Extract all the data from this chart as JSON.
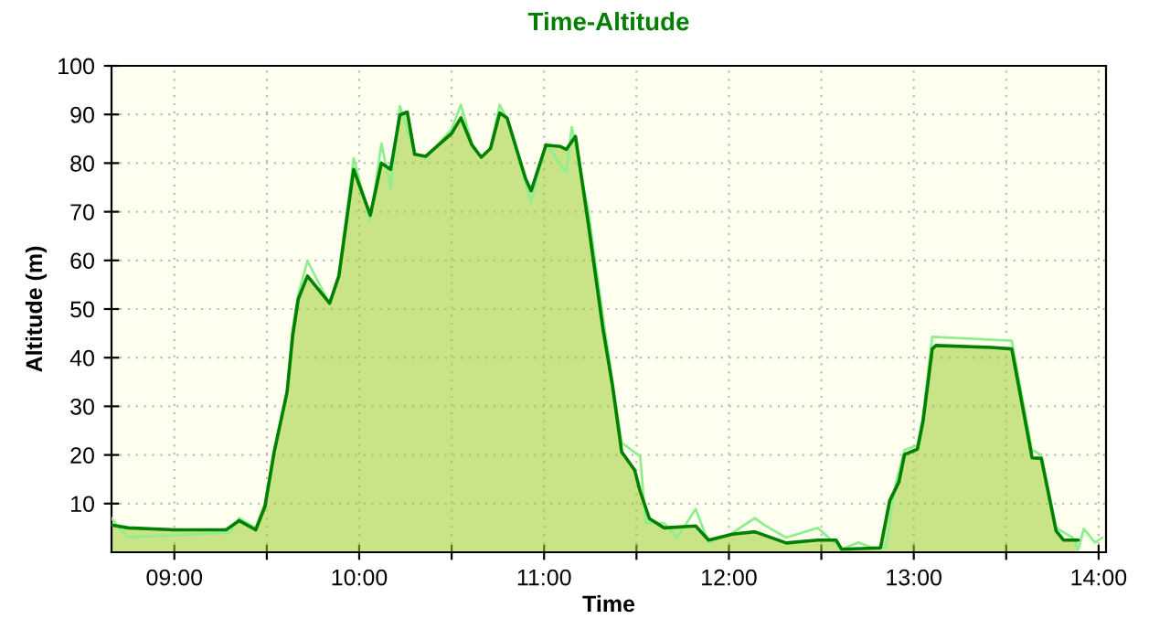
{
  "chart_data": {
    "type": "area",
    "title": "Time-Altitude",
    "xlabel": "Time",
    "ylabel": "Altitude (m)",
    "xlim": [
      8.66,
      14.04
    ],
    "ylim": [
      0,
      100
    ],
    "xticks": [
      {
        "value": 9,
        "label": "09:00"
      },
      {
        "value": 9.5,
        "label": null
      },
      {
        "value": 10,
        "label": "10:00"
      },
      {
        "value": 10.5,
        "label": null
      },
      {
        "value": 11,
        "label": "11:00"
      },
      {
        "value": 11.5,
        "label": null
      },
      {
        "value": 12,
        "label": "12:00"
      },
      {
        "value": 12.5,
        "label": null
      },
      {
        "value": 13,
        "label": "13:00"
      },
      {
        "value": 13.5,
        "label": null
      },
      {
        "value": 14,
        "label": "14:00"
      }
    ],
    "yticks": [
      10,
      20,
      30,
      40,
      50,
      60,
      70,
      80,
      90,
      100
    ],
    "grid": true,
    "series": [
      {
        "type": "line",
        "color": "#90ee90",
        "x": [
          8.66,
          8.7,
          8.75,
          9.3,
          9.35,
          9.44,
          9.49,
          9.54,
          9.61,
          9.64,
          9.67,
          9.72,
          9.84,
          9.89,
          9.97,
          10.06,
          10.12,
          10.17,
          10.22,
          10.3,
          10.36,
          10.5,
          10.55,
          10.61,
          10.66,
          10.71,
          10.76,
          10.8,
          10.93,
          11.01,
          11.12,
          11.15,
          11.24,
          11.32,
          11.37,
          11.42,
          11.52,
          11.55,
          11.65,
          11.72,
          11.82,
          11.89,
          12.02,
          12.14,
          12.2,
          12.31,
          12.48,
          12.61,
          12.7,
          12.78,
          12.85,
          12.9,
          12.95,
          13.02,
          13.05,
          13.1,
          13.53,
          13.61,
          13.64,
          13.69,
          13.77,
          13.86,
          13.89,
          13.92,
          13.98,
          14.02
        ],
        "values": [
          7,
          5,
          3.1,
          4,
          7,
          5,
          10,
          21,
          33,
          46,
          53,
          59.9,
          51,
          57,
          81,
          68,
          84,
          74.9,
          91.7,
          82,
          81,
          87,
          92,
          84,
          81,
          83,
          92,
          89,
          72,
          84,
          78,
          87.4,
          70,
          48,
          35,
          22.5,
          19.7,
          6,
          6,
          3,
          8.9,
          2,
          4,
          7,
          5.4,
          3,
          5,
          0.6,
          2,
          0.9,
          1,
          13.7,
          21,
          22,
          28,
          44.3,
          43.5,
          27,
          21,
          20,
          5,
          3,
          0.5,
          4.8,
          2,
          3
        ]
      },
      {
        "color": "#008000",
        "x": [
          8.66,
          8.75,
          9.0,
          9.28,
          9.35,
          9.44,
          9.49,
          9.54,
          9.61,
          9.64,
          9.67,
          9.72,
          9.84,
          9.89,
          9.97,
          10.06,
          10.12,
          10.17,
          10.22,
          10.26,
          10.3,
          10.36,
          10.5,
          10.55,
          10.61,
          10.66,
          10.71,
          10.76,
          10.8,
          10.9,
          10.93,
          11.01,
          11.09,
          11.12,
          11.17,
          11.24,
          11.32,
          11.37,
          11.42,
          11.49,
          11.52,
          11.57,
          11.65,
          11.82,
          11.89,
          12.02,
          12.14,
          12.31,
          12.48,
          12.58,
          12.61,
          12.82,
          12.87,
          12.92,
          12.95,
          13.02,
          13.05,
          13.1,
          13.12,
          13.42,
          13.53,
          13.61,
          13.64,
          13.69,
          13.77,
          13.81,
          13.89
        ],
        "values": [
          5.6,
          5.0,
          4.6,
          4.6,
          6.5,
          4.6,
          9.4,
          20.6,
          33,
          44.5,
          52,
          56.8,
          51.2,
          56.8,
          78.7,
          69.3,
          80,
          78.7,
          89.9,
          90.5,
          81.8,
          81.4,
          86.1,
          89.3,
          83.7,
          81.2,
          83,
          90.3,
          89.3,
          76.8,
          74.3,
          83.7,
          83.4,
          82.8,
          85.5,
          67.4,
          45.6,
          34.3,
          20.6,
          16.9,
          12.5,
          6.9,
          5.0,
          5.4,
          2.5,
          3.7,
          4.2,
          1.9,
          2.5,
          2.5,
          0.6,
          0.9,
          10.6,
          14.5,
          20.1,
          21.2,
          26.9,
          41.8,
          42.5,
          42.1,
          41.8,
          25.6,
          19.4,
          19.3,
          4.4,
          2.5,
          2.5
        ]
      }
    ]
  }
}
